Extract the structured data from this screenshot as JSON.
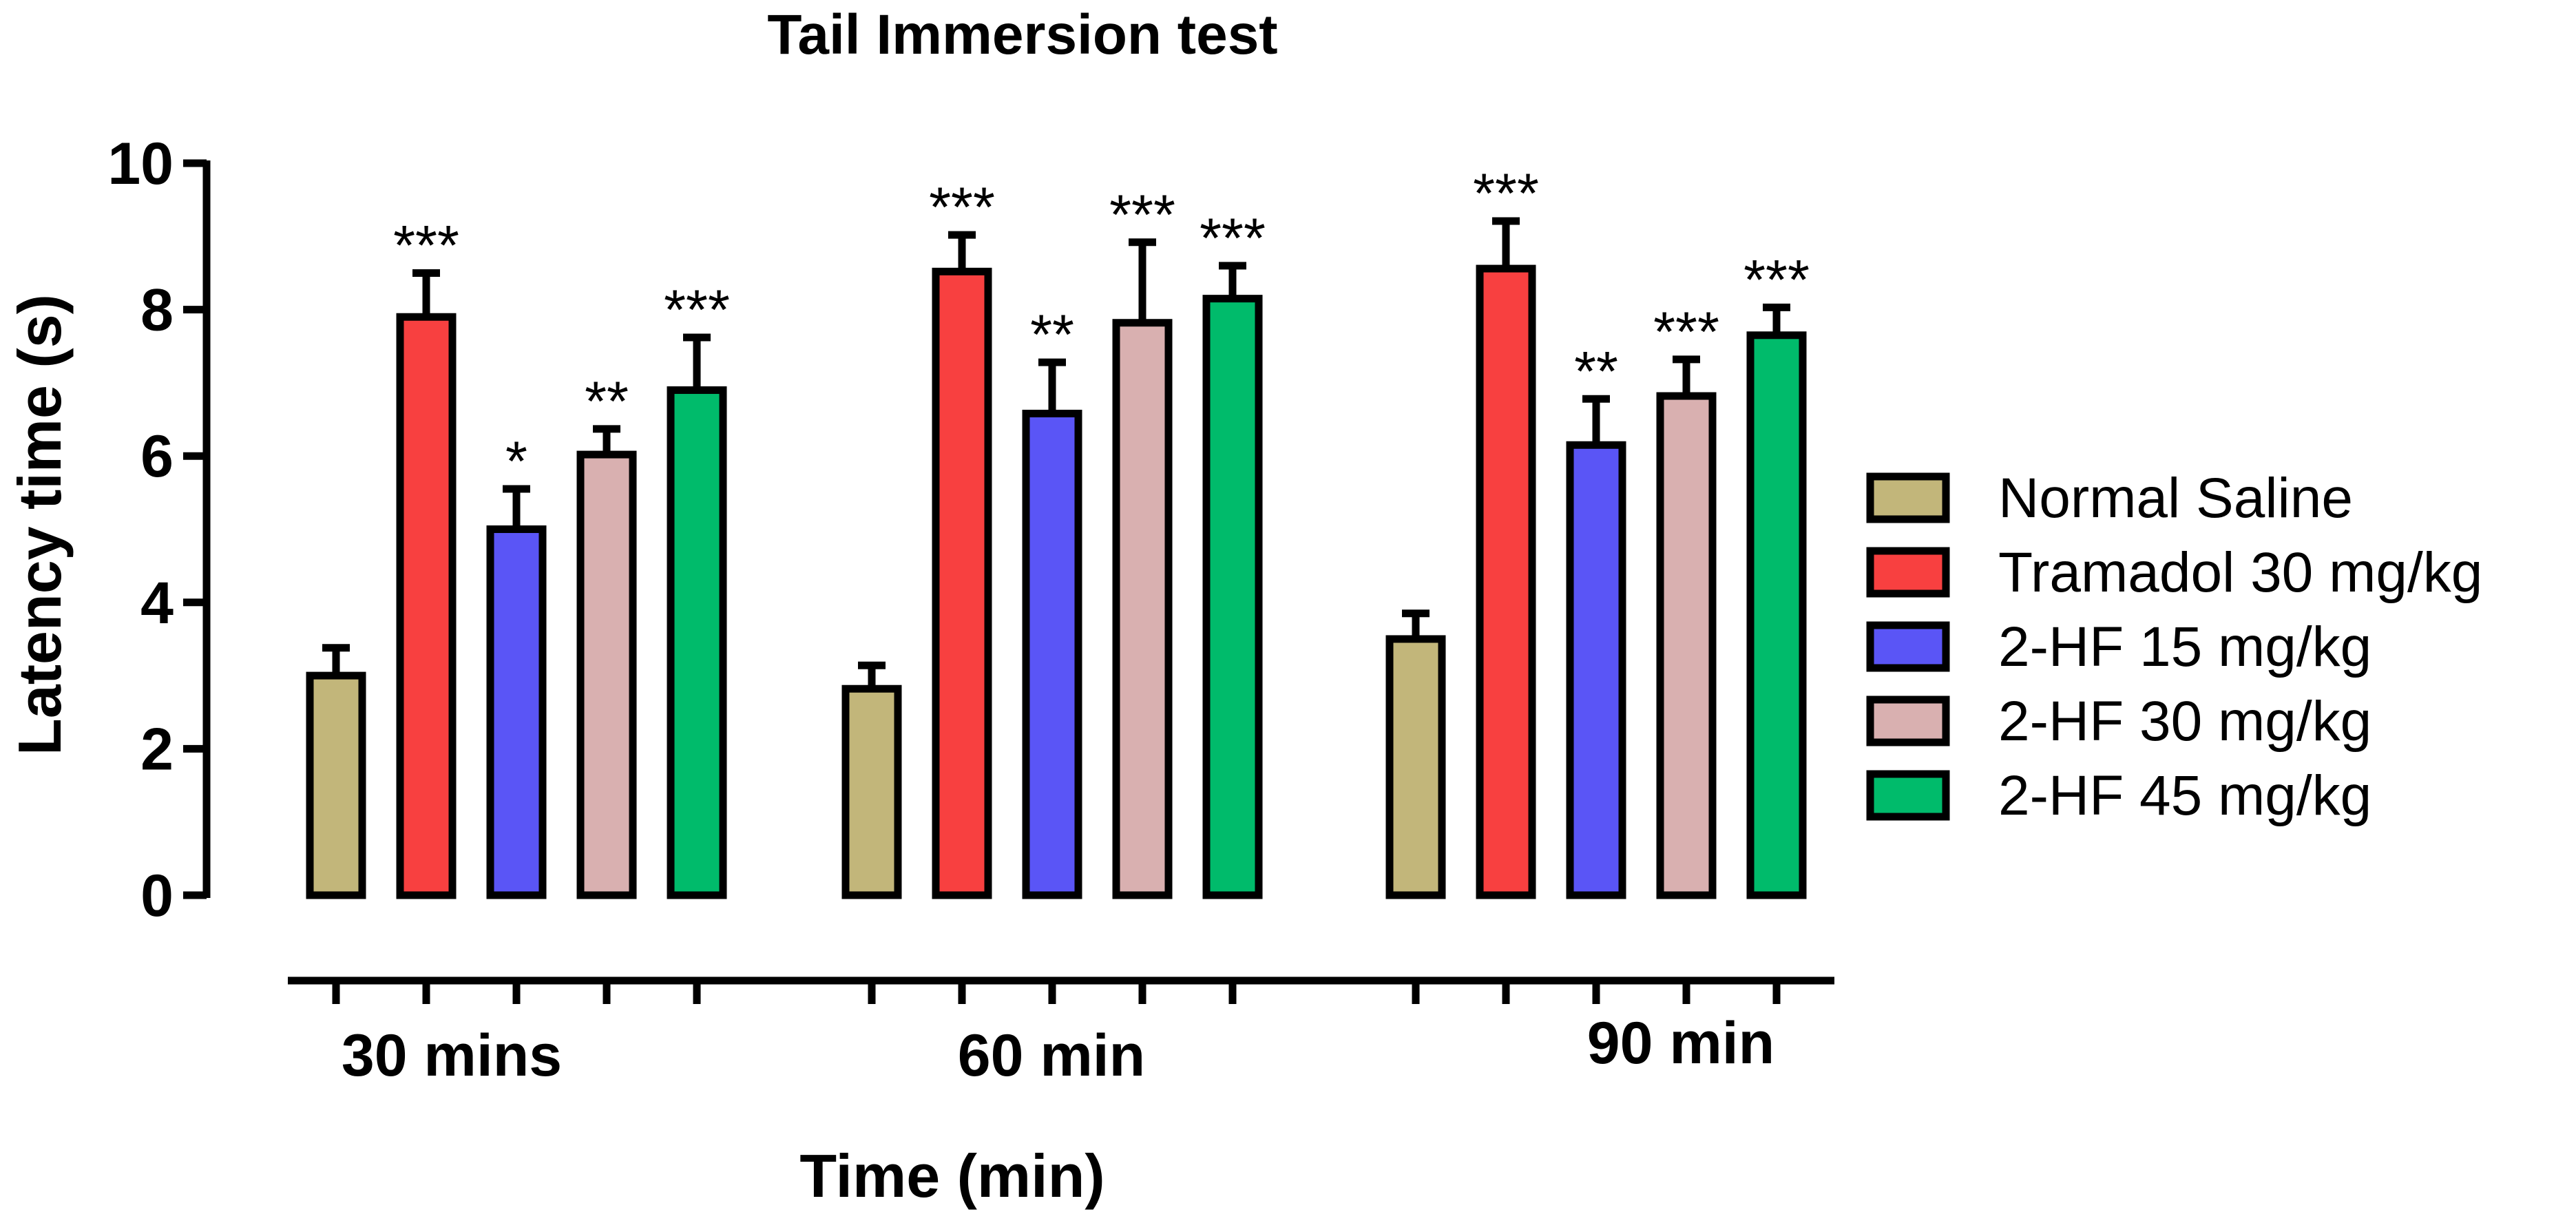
{
  "chart_data": {
    "type": "bar",
    "title": "Tail Immersion test",
    "xlabel": "Time (min)",
    "ylabel": "Latency time (s)",
    "ylim": [
      0,
      10
    ],
    "yticks": [
      "0",
      "2",
      "4",
      "6",
      "8",
      "10"
    ],
    "categories": [
      "30 mins",
      "60 min",
      "90 min"
    ],
    "series": [
      {
        "name": "Normal Saline",
        "color": "#c2b67a",
        "values": [
          3.0,
          2.82,
          3.5
        ],
        "errors": [
          0.38,
          0.32,
          0.35
        ],
        "significance": [
          "",
          "",
          ""
        ]
      },
      {
        "name": "Tramadol 30 mg/kg",
        "color": "#f84040",
        "values": [
          7.9,
          8.52,
          8.56
        ],
        "errors": [
          0.6,
          0.5,
          0.65
        ],
        "significance": [
          "***",
          "***",
          "***"
        ]
      },
      {
        "name": "2-HF 15 mg/kg",
        "color": "#5a55f6",
        "values": [
          5.0,
          6.58,
          6.15
        ],
        "errors": [
          0.55,
          0.7,
          0.63
        ],
        "significance": [
          "*",
          "**",
          "**"
        ]
      },
      {
        "name": "2-HF 30 mg/kg",
        "color": "#d9b0b0",
        "values": [
          6.02,
          7.82,
          6.82
        ],
        "errors": [
          0.35,
          1.1,
          0.5
        ],
        "significance": [
          "**",
          "***",
          "***"
        ]
      },
      {
        "name": "2-HF 45 mg/kg",
        "color": "#00bb6b",
        "values": [
          6.9,
          8.15,
          7.65
        ],
        "errors": [
          0.72,
          0.45,
          0.38
        ],
        "significance": [
          "***",
          "***",
          "***"
        ]
      }
    ],
    "grid": false,
    "legend_position": "right"
  }
}
